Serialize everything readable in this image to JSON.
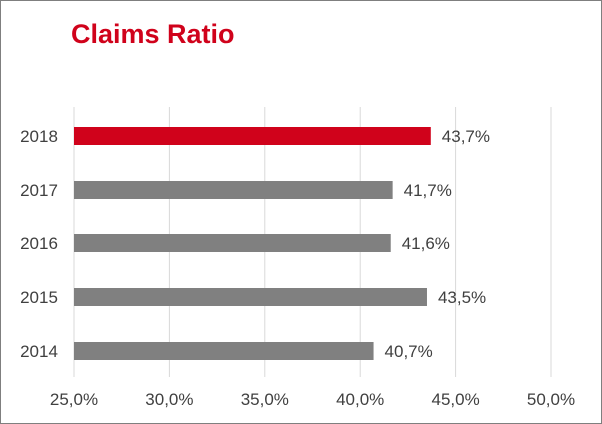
{
  "chart_data": {
    "type": "bar",
    "orientation": "horizontal",
    "title": "Claims Ratio",
    "categories": [
      "2018",
      "2017",
      "2016",
      "2015",
      "2014"
    ],
    "values": [
      43.7,
      41.7,
      41.6,
      43.5,
      40.7
    ],
    "value_labels": [
      "43,7%",
      "41,7%",
      "41,6%",
      "43,5%",
      "40,7%"
    ],
    "bar_colors": [
      "#d0021b",
      "#808080",
      "#808080",
      "#808080",
      "#808080"
    ],
    "xlim": [
      25,
      50
    ],
    "x_ticks": [
      25,
      30,
      35,
      40,
      45,
      50
    ],
    "x_tick_labels": [
      "25,0%",
      "30,0%",
      "35,0%",
      "40,0%",
      "45,0%",
      "50,0%"
    ],
    "grid": "vertical",
    "gridline_color": "#d9d9d9",
    "xlabel": "",
    "ylabel": ""
  }
}
